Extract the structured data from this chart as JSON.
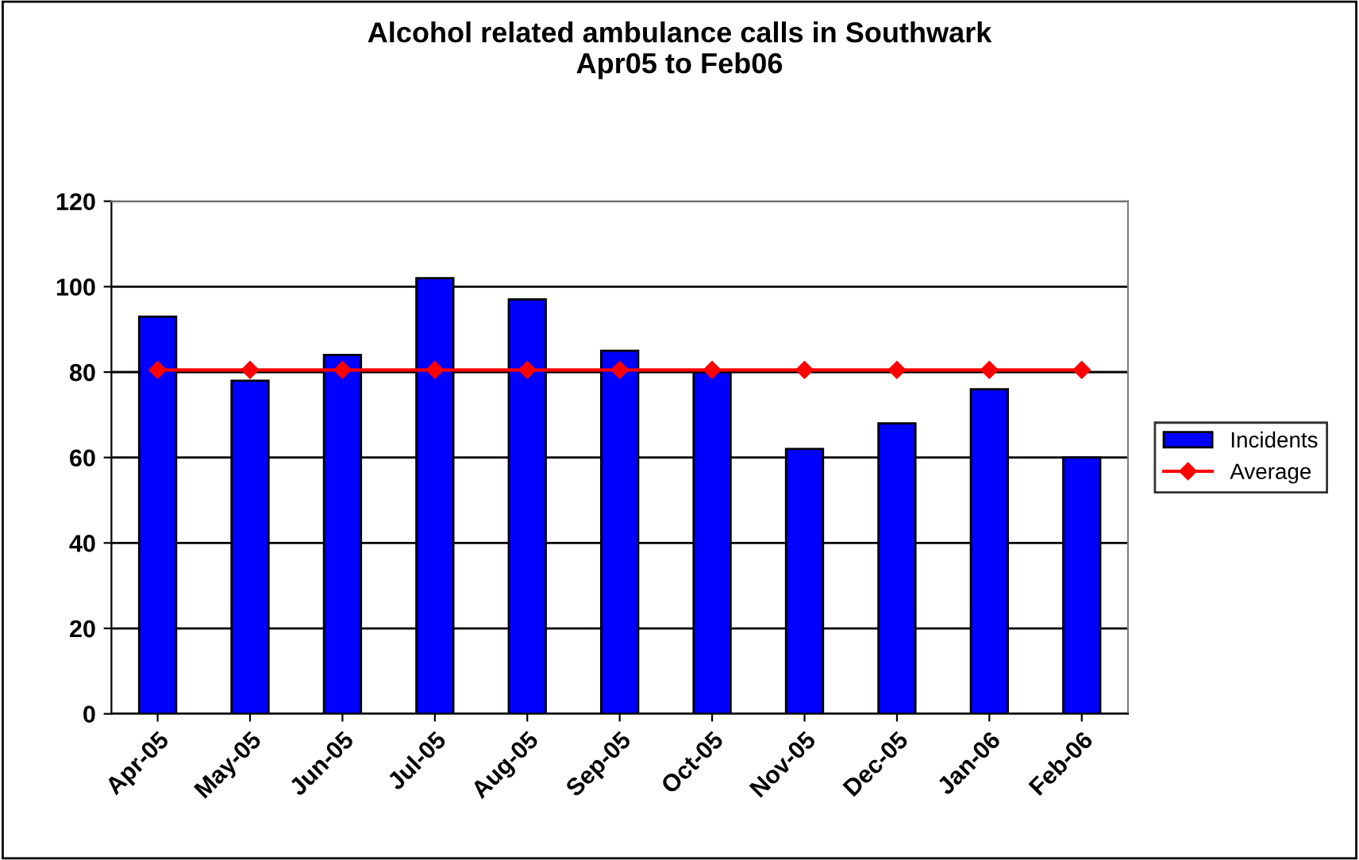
{
  "chart_data": {
    "type": "bar",
    "title": "Alcohol related ambulance calls in Southwark\nApr05 to Feb06",
    "categories": [
      "Apr-05",
      "May-05",
      "Jun-05",
      "Jul-05",
      "Aug-05",
      "Sep-05",
      "Oct-05",
      "Nov-05",
      "Dec-05",
      "Jan-06",
      "Feb-06"
    ],
    "series": [
      {
        "name": "Incidents",
        "color": "#0000ff",
        "values": [
          93,
          78,
          84,
          102,
          97,
          85,
          80,
          62,
          68,
          76,
          60
        ]
      },
      {
        "name": "Average",
        "type": "line",
        "color": "#ff0000",
        "marker": "diamond",
        "values": [
          80.5,
          80.5,
          80.5,
          80.5,
          80.5,
          80.5,
          80.5,
          80.5,
          80.5,
          80.5,
          80.5
        ]
      }
    ],
    "ylim": [
      0,
      120
    ],
    "yticks": [
      0,
      20,
      40,
      60,
      80,
      100,
      120
    ],
    "grid": "y",
    "legend": "right"
  }
}
